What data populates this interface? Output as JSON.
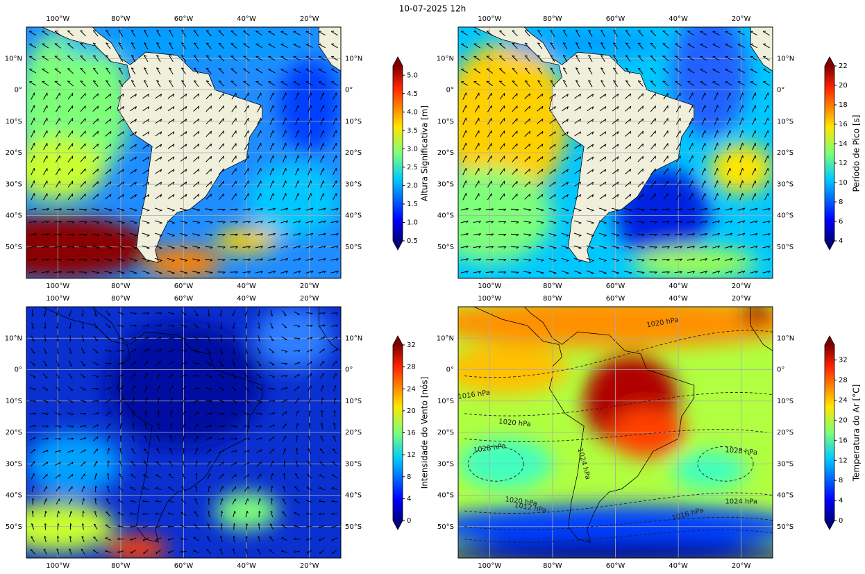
{
  "title": "10-07-2025 12h",
  "map": {
    "lonlim": [
      -110,
      -10
    ],
    "latlim": [
      -60,
      20
    ],
    "lon_ticks": [
      {
        "value": -100,
        "label": "100°W"
      },
      {
        "value": -80,
        "label": "80°W"
      },
      {
        "value": -60,
        "label": "60°W"
      },
      {
        "value": -40,
        "label": "40°W"
      },
      {
        "value": -20,
        "label": "20°W"
      }
    ],
    "lat_ticks": [
      {
        "value": 10,
        "label": "10°N"
      },
      {
        "value": 0,
        "label": "0°"
      },
      {
        "value": -10,
        "label": "10°S"
      },
      {
        "value": -20,
        "label": "20°S"
      },
      {
        "value": -30,
        "label": "30°S"
      },
      {
        "value": -40,
        "label": "40°S"
      },
      {
        "value": -50,
        "label": "50°S"
      }
    ],
    "grid": true
  },
  "panels": [
    {
      "colorbar": {
        "label": "Altura Significativa [m]",
        "lim": [
          0.5,
          5.25
        ],
        "ticks": [
          0.5,
          {
            "value": 1,
            "label": "1.0"
          },
          1.5,
          {
            "value": 2,
            "label": "2.0"
          },
          2.5,
          {
            "value": 3,
            "label": "3.0"
          },
          3.5,
          {
            "value": 4,
            "label": "4.0"
          },
          4.5,
          {
            "value": 5,
            "label": "5.0"
          }
        ]
      }
    },
    {
      "colorbar": {
        "label": "Período de Pico [s]",
        "lim": [
          4,
          22
        ],
        "ticks": [
          4,
          6,
          8,
          10,
          12,
          14,
          16,
          18,
          20,
          22
        ]
      }
    },
    {
      "colorbar": {
        "label": "Intensidade do Vento [nós]",
        "lim": [
          0,
          32
        ],
        "ticks": [
          0,
          4,
          8,
          12,
          16,
          20,
          24,
          28,
          32
        ]
      }
    },
    {
      "colorbar": {
        "label": "Temperatura do Ar [°C]",
        "lim": [
          0,
          35
        ],
        "ticks": [
          0,
          4,
          8,
          12,
          16,
          20,
          24,
          28,
          32
        ]
      },
      "contour_labels": [
        "1020 hPa",
        "1016 hPa",
        "1020 hPa",
        "1028 hPa",
        "1024 hPa",
        "1028 hPa",
        "1020 hPa",
        "1012 hPa",
        "1024 hPa",
        "1016 hPa"
      ]
    }
  ]
}
